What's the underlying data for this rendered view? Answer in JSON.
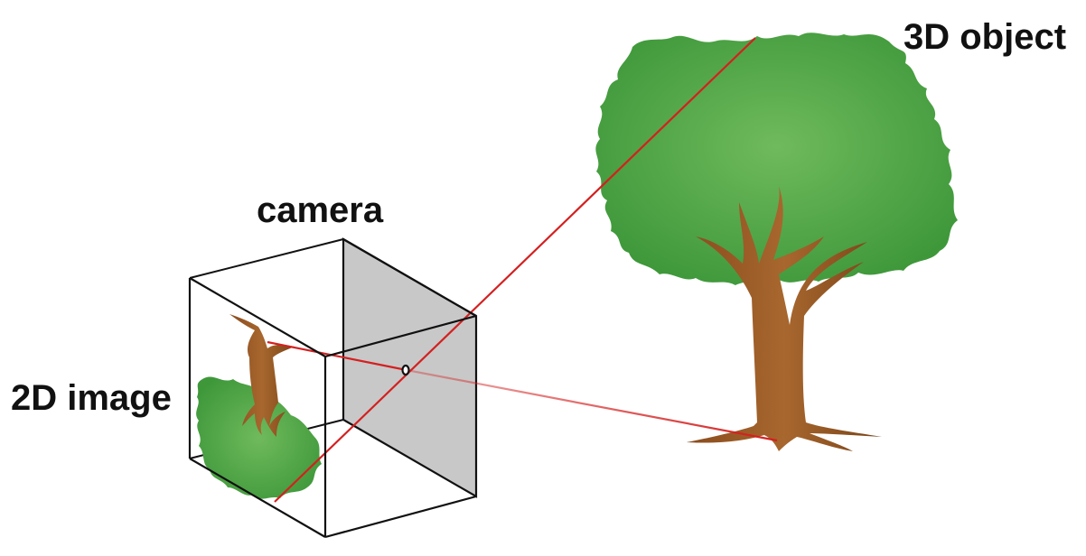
{
  "labels": {
    "object": "3D object",
    "camera": "camera",
    "image": "2D image"
  },
  "colors": {
    "foliage_center": "#6db85a",
    "foliage_edge": "#3f9a3a",
    "trunk": "#9a5a26",
    "trunk_dark": "#7a4418",
    "ray": "#d42020",
    "camera_side": "#c8c8c8",
    "outline": "#111111"
  }
}
